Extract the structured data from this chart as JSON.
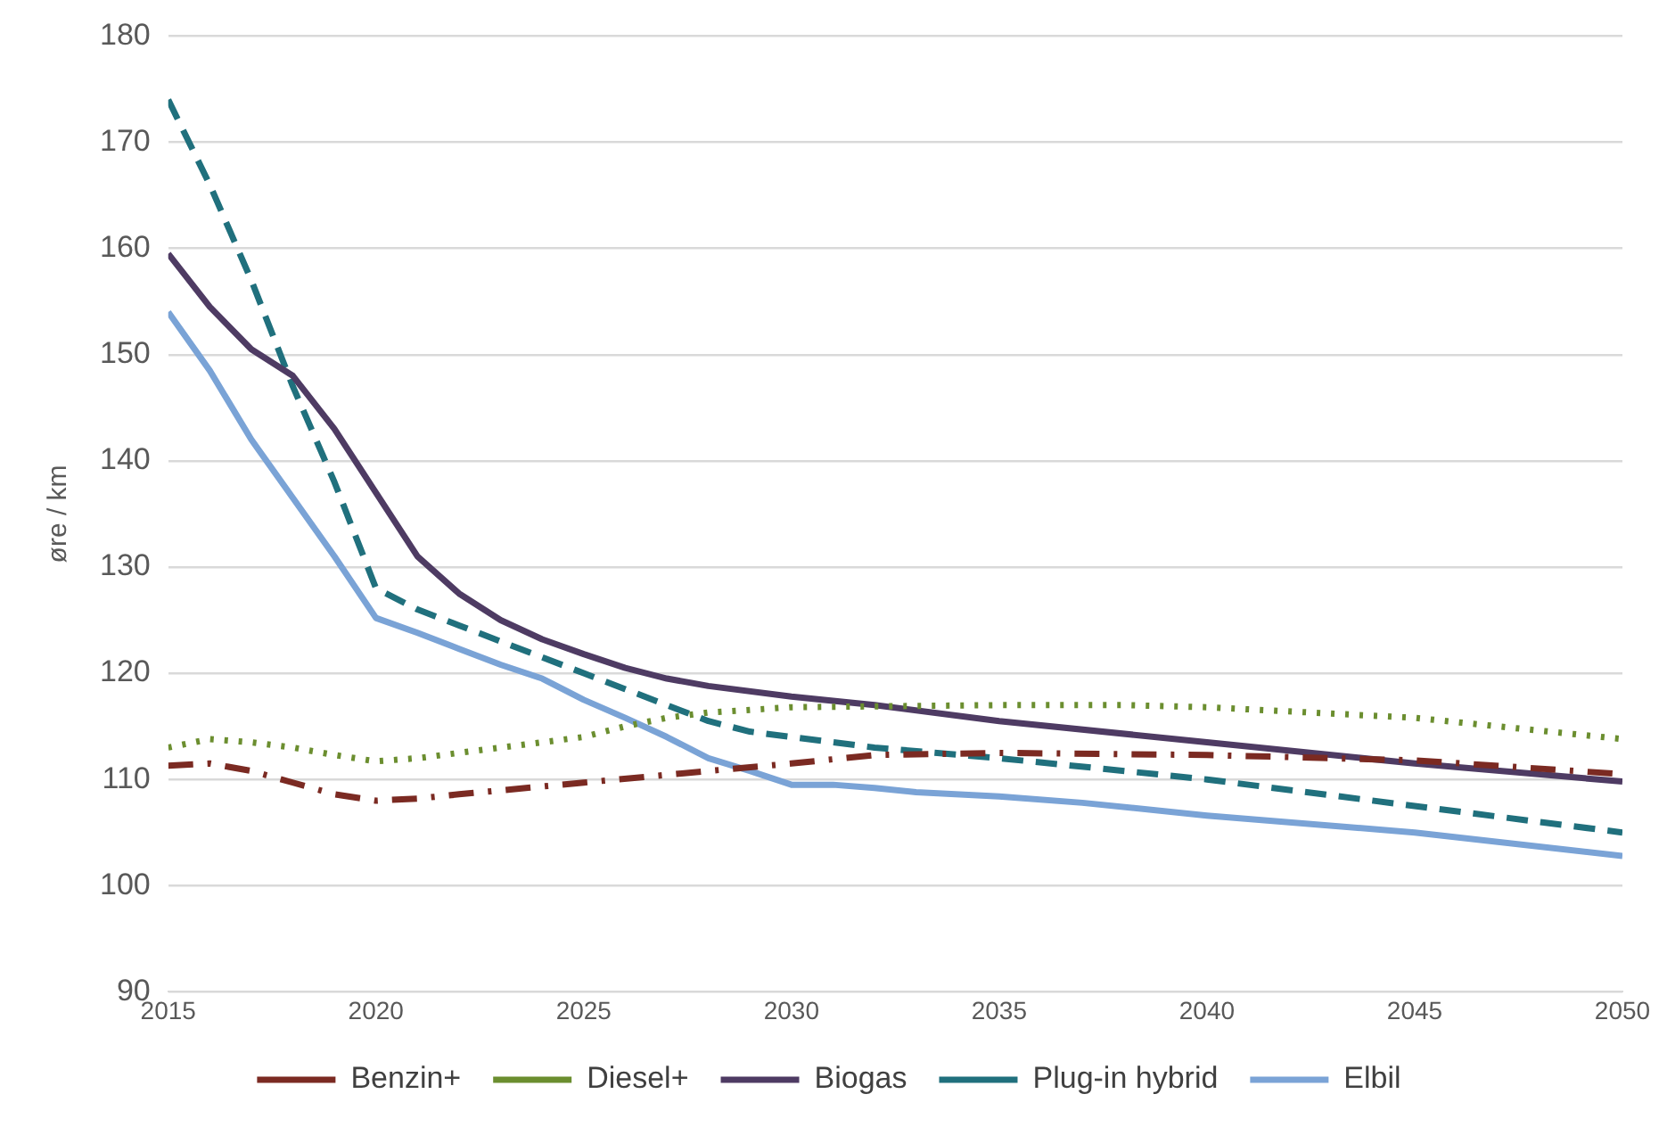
{
  "chart_data": {
    "type": "line",
    "ylabel": "øre / km",
    "xlim": [
      2015,
      2050
    ],
    "xticks": [
      2015,
      2020,
      2025,
      2030,
      2035,
      2040,
      2045,
      2050
    ],
    "ylim": [
      90,
      180
    ],
    "yticks": [
      90,
      100,
      110,
      120,
      130,
      140,
      150,
      160,
      170,
      180
    ],
    "grid": "y",
    "legend": "bottom",
    "marker": "none",
    "series": [
      {
        "name": "Benzin+",
        "color": "#7b2a22",
        "line_style": "dashdot",
        "x": [
          2015,
          2016,
          2017,
          2018,
          2019,
          2020,
          2021,
          2022,
          2025,
          2028,
          2030,
          2032,
          2035,
          2040,
          2045,
          2050
        ],
        "values": [
          111.3,
          111.5,
          110.8,
          109.7,
          108.6,
          108,
          108.2,
          108.6,
          109.7,
          110.8,
          111.5,
          112.3,
          112.5,
          112.3,
          111.8,
          110.5
        ]
      },
      {
        "name": "Diesel+",
        "color": "#6b8e2f",
        "line_style": "dotted",
        "x": [
          2015,
          2016,
          2017,
          2018,
          2019,
          2020,
          2021,
          2022,
          2023,
          2024,
          2025,
          2026,
          2027,
          2028,
          2030,
          2035,
          2038,
          2040,
          2045,
          2050
        ],
        "values": [
          113,
          113.8,
          113.5,
          113,
          112.3,
          111.7,
          112,
          112.5,
          113,
          113.5,
          114,
          115,
          115.8,
          116.3,
          116.8,
          117,
          117,
          116.8,
          115.8,
          113.8
        ]
      },
      {
        "name": "Biogas",
        "color": "#4e3b63",
        "line_style": "solid",
        "x": [
          2015,
          2016,
          2017,
          2018,
          2019,
          2020,
          2021,
          2022,
          2023,
          2024,
          2025,
          2026,
          2027,
          2028,
          2030,
          2032,
          2035,
          2040,
          2045,
          2050
        ],
        "values": [
          159.5,
          154.5,
          150.5,
          148,
          143,
          137,
          131,
          127.5,
          125,
          123.2,
          121.8,
          120.5,
          119.5,
          118.8,
          117.8,
          117,
          115.5,
          113.5,
          111.5,
          109.8
        ]
      },
      {
        "name": "Plug-in hybrid",
        "color": "#20707d",
        "line_style": "dashed",
        "x": [
          2015,
          2016,
          2017,
          2018,
          2019,
          2020,
          2021,
          2022,
          2023,
          2024,
          2025,
          2026,
          2027,
          2028,
          2029,
          2030,
          2031,
          2032,
          2035,
          2040,
          2045,
          2050
        ],
        "values": [
          174,
          166,
          157,
          147,
          138,
          128,
          126,
          124.5,
          123,
          121.5,
          120,
          118.5,
          117,
          115.5,
          114.5,
          114,
          113.5,
          113,
          112,
          110,
          107.5,
          105
        ]
      },
      {
        "name": "Elbil",
        "color": "#7aa3d6",
        "line_style": "solid",
        "x": [
          2015,
          2016,
          2017,
          2018,
          2019,
          2020,
          2021,
          2022,
          2023,
          2024,
          2025,
          2026,
          2027,
          2028,
          2029,
          2030,
          2031,
          2032,
          2033,
          2035,
          2037,
          2040,
          2045,
          2050
        ],
        "values": [
          154,
          148.5,
          142,
          136.5,
          131,
          125.2,
          123.8,
          122.3,
          120.8,
          119.5,
          117.5,
          115.8,
          114,
          112,
          110.8,
          109.5,
          109.5,
          109.2,
          108.8,
          108.4,
          107.8,
          106.6,
          105,
          102.8
        ]
      }
    ]
  }
}
